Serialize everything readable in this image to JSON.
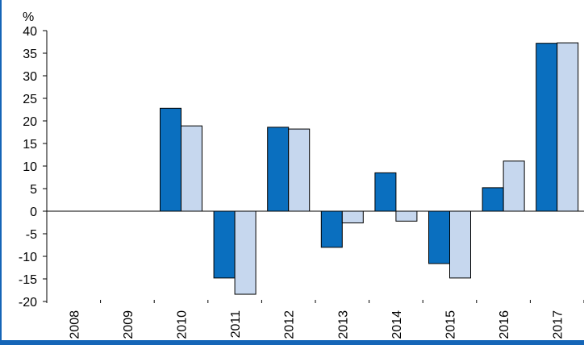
{
  "chart_data": {
    "type": "bar",
    "unit": "%",
    "categories": [
      "2008",
      "2009",
      "2010",
      "2011",
      "2012",
      "2013",
      "2014",
      "2015",
      "2016",
      "2017"
    ],
    "series": [
      {
        "values": [
          0,
          0,
          22.8,
          -14.8,
          18.6,
          -8.0,
          8.5,
          -11.6,
          5.2,
          37.2
        ],
        "color": "#0a6fbf"
      },
      {
        "values": [
          0,
          0,
          18.9,
          -18.4,
          18.2,
          -2.6,
          -2.2,
          -14.8,
          11.1,
          37.3
        ],
        "color": "#c6d7ee"
      }
    ],
    "y_ticks": [
      "40",
      "35",
      "30",
      "25",
      "20",
      "15",
      "10",
      "5",
      "0",
      "-5",
      "-10",
      "-15",
      "-20"
    ],
    "ylim": [
      -20,
      40
    ],
    "grid": false,
    "legend": "none"
  }
}
